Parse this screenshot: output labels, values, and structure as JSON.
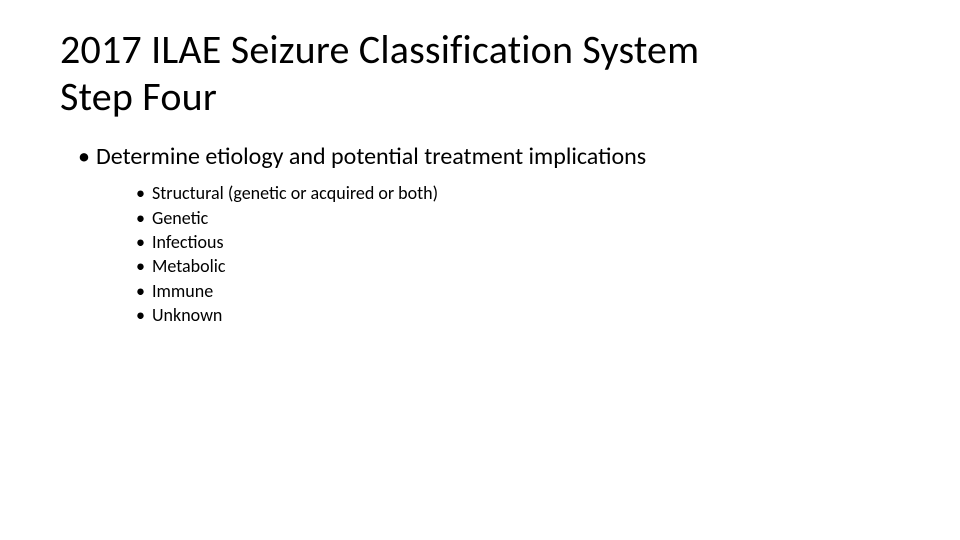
{
  "title_line1": "2017 ILAE Seizure Classification System",
  "title_line2": "Step Four",
  "main_bullet": "Determine etiology and potential treatment implications",
  "sub_items": [
    "Structural (genetic or acquired or both)",
    "Genetic",
    "Infectious",
    "Metabolic",
    "Immune",
    "Unknown"
  ],
  "styling": {
    "background_color": "#ffffff",
    "text_color": "#000000",
    "title_fontsize": 40,
    "main_bullet_fontsize": 24,
    "sub_item_fontsize": 18,
    "font_family": "Calibri"
  }
}
